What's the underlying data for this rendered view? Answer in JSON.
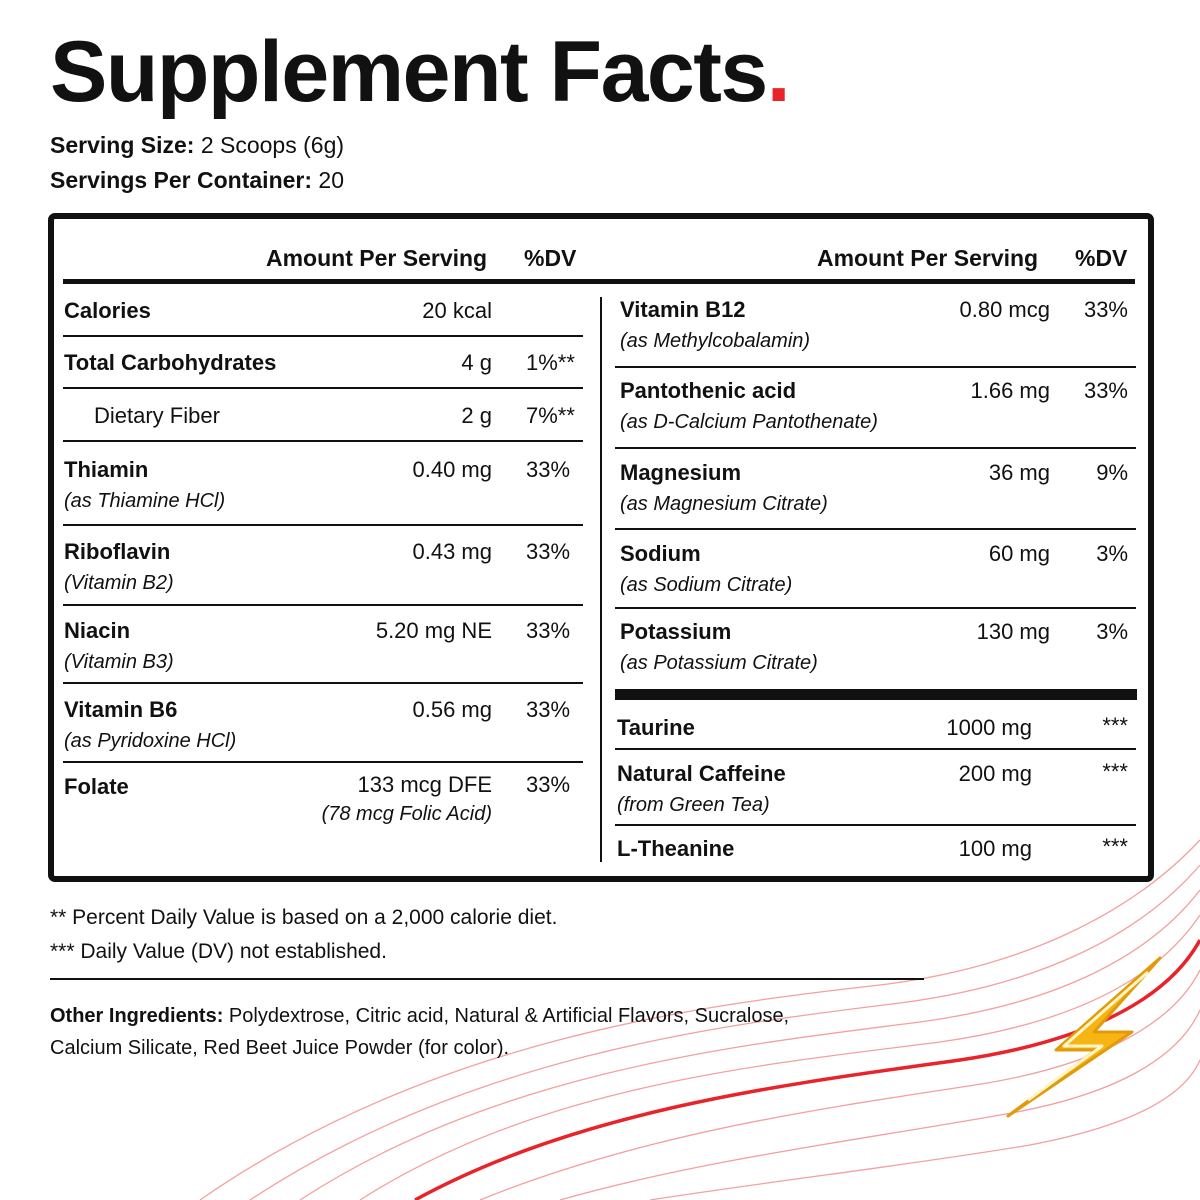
{
  "title": "Supplement Facts",
  "title_accent": ".",
  "serving": {
    "size_label": "Serving Size:",
    "size_value": "2 Scoops (6g)",
    "per_container_label": "Servings Per Container:",
    "per_container_value": "20"
  },
  "headers": {
    "amount": "Amount Per Serving",
    "dv": "%DV"
  },
  "left_rows": [
    {
      "name": "Calories",
      "amount": "20 kcal",
      "dv": ""
    },
    {
      "name": "Total Carbohydrates",
      "amount": "4 g",
      "dv": "1%**"
    },
    {
      "name": "Dietary Fiber",
      "amount": "2 g",
      "dv": "7%**"
    },
    {
      "name": "Thiamin",
      "sub": "(as Thiamine HCl)",
      "amount": "0.40 mg",
      "dv": "33%"
    },
    {
      "name": "Riboflavin",
      "sub": "(Vitamin B2)",
      "amount": "0.43 mg",
      "dv": "33%"
    },
    {
      "name": "Niacin",
      "sub": "(Vitamin B3)",
      "amount": "5.20 mg NE",
      "dv": "33%"
    },
    {
      "name": "Vitamin B6",
      "sub": "(as Pyridoxine HCl)",
      "amount": "0.56 mg",
      "dv": "33%"
    },
    {
      "name": "Folate",
      "amount": "133 mcg DFE",
      "amount_sub": "(78 mcg Folic Acid)",
      "dv": "33%"
    }
  ],
  "right_rows": [
    {
      "name": "Vitamin B12",
      "sub": "(as Methylcobalamin)",
      "amount": "0.80 mcg",
      "dv": "33%"
    },
    {
      "name": "Pantothenic acid",
      "sub": "(as D-Calcium Pantothenate)",
      "amount": "1.66 mg",
      "dv": "33%"
    },
    {
      "name": "Magnesium",
      "sub": "(as Magnesium Citrate)",
      "amount": "36 mg",
      "dv": "9%"
    },
    {
      "name": "Sodium",
      "sub": "(as Sodium Citrate)",
      "amount": "60 mg",
      "dv": "3%"
    },
    {
      "name": "Potassium",
      "sub": "(as Potassium Citrate)",
      "amount": "130 mg",
      "dv": "3%"
    },
    {
      "name": "Taurine",
      "amount": "1000 mg",
      "dv": "***"
    },
    {
      "name": "Natural Caffeine",
      "sub": "(from Green Tea)",
      "amount": "200 mg",
      "dv": "***"
    },
    {
      "name": "L-Theanine",
      "amount": "100 mg",
      "dv": "***"
    }
  ],
  "footnotes": {
    "dv_note": "** Percent Daily Value is based on a 2,000 calorie diet.",
    "not_established": "*** Daily Value (DV) not established."
  },
  "other_ingredients": {
    "label": "Other Ingredients:",
    "text": "Polydextrose, Citric acid, Natural & Artificial Flavors, Sucralose, Calcium Silicate, Red Beet Juice Powder (for color)."
  },
  "colors": {
    "accent_red": "#e8232a",
    "bolt_yellow": "#f6b512",
    "text": "#111111"
  },
  "icons": {
    "bolt": "lightning-bolt-icon"
  }
}
